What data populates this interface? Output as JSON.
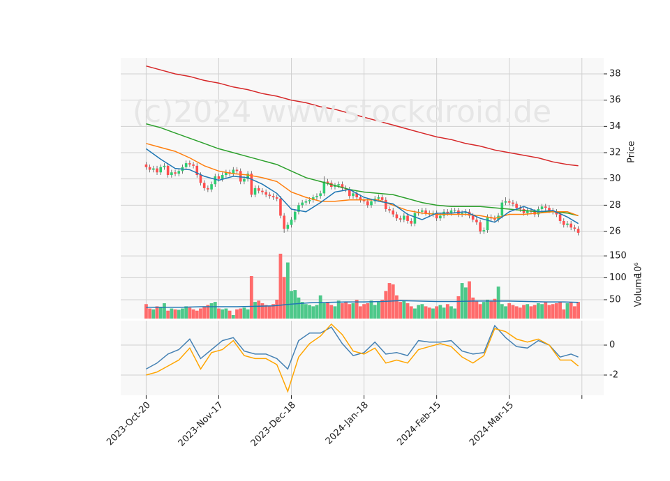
{
  "chart_data": [
    {
      "type": "candlestick",
      "y_label": "Price",
      "watermark": "(c)2024 www.stockdroid.de",
      "x": [
        0,
        1,
        2,
        3,
        4,
        5,
        6,
        7,
        8,
        9,
        10,
        11,
        12,
        13,
        14,
        15,
        16,
        17,
        18,
        19,
        20,
        21,
        22,
        23,
        24,
        25,
        26,
        27,
        28,
        29,
        30,
        31,
        32,
        33,
        34,
        35,
        36,
        37,
        38,
        39,
        40,
        41,
        42,
        43,
        44,
        45,
        46,
        47,
        48,
        49,
        50,
        51,
        52,
        53,
        54,
        55,
        56,
        57,
        58,
        59,
        60,
        61,
        62,
        63,
        64,
        65,
        66,
        67,
        68,
        69,
        70,
        71,
        72,
        73,
        74,
        75,
        76,
        77,
        78,
        79,
        80,
        81,
        82,
        83,
        84,
        85,
        86,
        87,
        88,
        89,
        90,
        91,
        92,
        93,
        94,
        95,
        96,
        97,
        98,
        99,
        100,
        101,
        102,
        103,
        104,
        105,
        106,
        107,
        108,
        109,
        110,
        111,
        112,
        113,
        114,
        115,
        116,
        117,
        118,
        119
      ],
      "open": [
        31.1,
        30.9,
        30.7,
        30.8,
        30.5,
        30.9,
        31.0,
        30.3,
        30.5,
        30.4,
        30.6,
        30.9,
        31.2,
        31.1,
        31.0,
        30.3,
        29.7,
        29.3,
        29.2,
        29.6,
        30.2,
        30.0,
        30.3,
        30.5,
        30.4,
        30.7,
        30.6,
        29.8,
        30.0,
        30.4,
        28.8,
        29.3,
        29.1,
        29.0,
        28.8,
        28.7,
        28.6,
        28.5,
        27.2,
        26.2,
        26.5,
        26.9,
        27.5,
        28.0,
        28.2,
        28.3,
        28.4,
        28.6,
        28.7,
        28.9,
        29.8,
        29.7,
        29.4,
        29.5,
        29.6,
        29.3,
        29.2,
        28.7,
        28.9,
        28.6,
        28.4,
        28.3,
        28.0,
        28.3,
        28.5,
        28.6,
        28.4,
        27.7,
        27.6,
        27.3,
        27.0,
        26.9,
        27.2,
        26.8,
        26.6,
        27.4,
        27.5,
        27.6,
        27.4,
        27.3,
        27.4,
        27.0,
        27.2,
        27.5,
        27.4,
        27.6,
        27.6,
        27.3,
        27.4,
        27.5,
        27.2,
        26.9,
        26.7,
        26.0,
        26.1,
        27.1,
        27.0,
        26.9,
        27.2,
        28.2,
        28.3,
        28.2,
        28.1,
        27.8,
        27.7,
        27.4,
        27.6,
        27.5,
        27.3,
        27.7,
        27.9,
        27.8,
        27.6,
        27.5,
        27.3,
        26.8,
        26.5,
        26.6,
        26.3,
        26.2
      ],
      "high": [
        31.3,
        31.1,
        31.0,
        31.0,
        31.1,
        31.2,
        31.2,
        30.7,
        30.7,
        30.8,
        31.1,
        31.4,
        31.4,
        31.3,
        31.2,
        30.5,
        29.9,
        29.5,
        29.8,
        30.4,
        30.4,
        30.5,
        30.7,
        30.7,
        30.9,
        30.9,
        30.8,
        30.2,
        30.6,
        30.6,
        29.5,
        29.5,
        29.3,
        29.2,
        29.0,
        28.9,
        28.8,
        28.7,
        27.4,
        26.7,
        27.1,
        27.7,
        28.2,
        28.4,
        28.5,
        28.6,
        28.8,
        28.9,
        29.1,
        30.2,
        30.0,
        29.9,
        29.7,
        29.8,
        29.8,
        29.5,
        29.4,
        29.1,
        29.1,
        28.8,
        28.6,
        28.5,
        28.5,
        28.7,
        28.8,
        28.8,
        28.6,
        27.9,
        27.8,
        27.5,
        27.2,
        27.4,
        27.4,
        27.0,
        27.6,
        27.7,
        27.8,
        27.8,
        27.6,
        27.6,
        27.6,
        27.4,
        27.7,
        27.7,
        27.8,
        27.8,
        27.8,
        27.6,
        27.7,
        27.7,
        27.4,
        27.1,
        26.9,
        26.3,
        27.3,
        27.3,
        27.2,
        27.4,
        28.4,
        28.6,
        28.5,
        28.4,
        28.3,
        28.0,
        27.9,
        27.8,
        27.8,
        27.7,
        27.9,
        28.1,
        28.1,
        28.0,
        27.8,
        27.7,
        27.5,
        27.0,
        26.8,
        26.8,
        26.5,
        26.4
      ],
      "low": [
        30.7,
        30.5,
        30.5,
        30.3,
        30.3,
        30.7,
        30.1,
        30.1,
        30.2,
        30.2,
        30.4,
        30.7,
        30.9,
        30.8,
        30.1,
        29.5,
        29.1,
        29.0,
        29.0,
        29.4,
        29.8,
        29.8,
        30.1,
        30.2,
        30.2,
        30.4,
        29.6,
        29.6,
        29.8,
        28.6,
        28.6,
        28.9,
        28.8,
        28.6,
        28.5,
        28.4,
        28.3,
        27.0,
        25.9,
        26.0,
        26.3,
        26.7,
        27.3,
        27.8,
        28.0,
        28.1,
        28.2,
        28.4,
        28.5,
        28.7,
        29.5,
        29.2,
        29.2,
        29.3,
        29.1,
        29.0,
        28.5,
        28.5,
        28.4,
        28.2,
        28.1,
        27.8,
        27.8,
        28.1,
        28.3,
        28.2,
        27.5,
        27.4,
        27.1,
        26.8,
        26.7,
        26.7,
        26.6,
        26.4,
        26.4,
        27.2,
        27.3,
        27.2,
        27.1,
        27.1,
        26.8,
        26.8,
        27.0,
        27.2,
        27.2,
        27.4,
        27.1,
        27.1,
        27.2,
        27.0,
        26.7,
        26.5,
        25.8,
        25.8,
        25.9,
        26.8,
        26.7,
        26.7,
        27.0,
        28.0,
        28.0,
        27.9,
        27.6,
        27.5,
        27.2,
        27.2,
        27.3,
        27.1,
        27.1,
        27.5,
        27.6,
        27.4,
        27.3,
        27.1,
        26.6,
        26.3,
        26.3,
        26.1,
        26.0,
        25.7
      ],
      "close": [
        30.9,
        30.7,
        30.8,
        30.5,
        30.9,
        31.0,
        30.3,
        30.5,
        30.4,
        30.6,
        30.9,
        31.2,
        31.1,
        31.0,
        30.3,
        29.7,
        29.3,
        29.2,
        29.6,
        30.2,
        30.0,
        30.3,
        30.5,
        30.4,
        30.7,
        30.6,
        29.8,
        30.0,
        30.4,
        28.8,
        29.3,
        29.1,
        29.0,
        28.8,
        28.7,
        28.6,
        28.5,
        27.2,
        26.2,
        26.5,
        26.9,
        27.5,
        28.0,
        28.2,
        28.3,
        28.4,
        28.6,
        28.7,
        28.9,
        29.8,
        29.7,
        29.4,
        29.5,
        29.6,
        29.3,
        29.2,
        28.7,
        28.9,
        28.6,
        28.4,
        28.3,
        28.0,
        28.3,
        28.5,
        28.6,
        28.4,
        27.7,
        27.6,
        27.3,
        27.0,
        26.9,
        27.2,
        26.8,
        26.6,
        27.4,
        27.5,
        27.6,
        27.4,
        27.3,
        27.4,
        27.0,
        27.2,
        27.5,
        27.4,
        27.6,
        27.6,
        27.3,
        27.4,
        27.5,
        27.2,
        26.9,
        26.7,
        26.0,
        26.1,
        27.1,
        27.0,
        26.9,
        27.2,
        28.2,
        28.3,
        28.2,
        28.1,
        27.8,
        27.7,
        27.4,
        27.6,
        27.5,
        27.3,
        27.7,
        27.9,
        27.8,
        27.6,
        27.5,
        27.3,
        26.8,
        26.5,
        26.6,
        26.3,
        26.2,
        25.9
      ],
      "up_color": "#2ecc71",
      "down_color": "#ff4d4d",
      "xlim": [
        -7,
        126
      ],
      "ylim": [
        24.94,
        39.22
      ],
      "yticks": [
        26,
        28,
        30,
        32,
        34,
        36,
        38
      ],
      "grid": true,
      "series": [
        {
          "color": "#d62728",
          "x": [
            0,
            4,
            8,
            12,
            16,
            20,
            24,
            28,
            32,
            36,
            40,
            44,
            48,
            52,
            56,
            60,
            64,
            68,
            72,
            76,
            80,
            84,
            88,
            92,
            96,
            100,
            104,
            108,
            112,
            116,
            119
          ],
          "values": [
            38.6,
            38.3,
            38.0,
            37.8,
            37.5,
            37.3,
            37.0,
            36.8,
            36.5,
            36.3,
            36.0,
            35.8,
            35.5,
            35.3,
            35.0,
            34.7,
            34.4,
            34.1,
            33.8,
            33.5,
            33.2,
            33.0,
            32.7,
            32.5,
            32.2,
            32.0,
            31.8,
            31.6,
            31.3,
            31.1,
            31.0
          ]
        },
        {
          "color": "#2ca02c",
          "x": [
            0,
            4,
            8,
            12,
            16,
            20,
            24,
            28,
            32,
            36,
            40,
            44,
            48,
            52,
            56,
            60,
            64,
            68,
            72,
            76,
            80,
            84,
            88,
            92,
            96,
            100,
            104,
            108,
            112,
            116,
            119
          ],
          "values": [
            34.2,
            33.9,
            33.5,
            33.1,
            32.7,
            32.3,
            32.0,
            31.7,
            31.4,
            31.1,
            30.6,
            30.1,
            29.8,
            29.5,
            29.2,
            29.0,
            28.9,
            28.8,
            28.5,
            28.2,
            28.0,
            27.9,
            27.9,
            27.9,
            27.8,
            27.7,
            27.6,
            27.5,
            27.5,
            27.4,
            27.2
          ]
        },
        {
          "color": "#ff7f0e",
          "x": [
            0,
            4,
            8,
            12,
            16,
            20,
            24,
            28,
            32,
            36,
            40,
            44,
            48,
            52,
            56,
            60,
            64,
            68,
            72,
            76,
            80,
            84,
            88,
            92,
            96,
            100,
            104,
            108,
            112,
            116,
            119
          ],
          "values": [
            32.7,
            32.4,
            32.1,
            31.6,
            31.0,
            30.6,
            30.4,
            30.3,
            30.1,
            29.8,
            29.0,
            28.6,
            28.3,
            28.3,
            28.4,
            28.4,
            28.4,
            28.0,
            27.6,
            27.4,
            27.3,
            27.3,
            27.3,
            27.2,
            27.0,
            27.3,
            27.3,
            27.4,
            27.5,
            27.5,
            27.2
          ]
        },
        {
          "color": "#1f77b4",
          "x": [
            0,
            4,
            8,
            12,
            16,
            20,
            24,
            28,
            32,
            36,
            40,
            44,
            48,
            52,
            56,
            60,
            64,
            68,
            72,
            76,
            80,
            84,
            88,
            92,
            96,
            100,
            104,
            108,
            112,
            116,
            119
          ],
          "values": [
            32.3,
            31.5,
            30.8,
            30.7,
            30.2,
            29.9,
            30.2,
            30.1,
            29.6,
            28.9,
            27.7,
            27.5,
            28.2,
            29.0,
            29.2,
            28.6,
            28.3,
            28.1,
            27.3,
            26.9,
            27.4,
            27.4,
            27.5,
            27.0,
            26.7,
            27.5,
            27.9,
            27.5,
            27.6,
            27.1,
            26.6
          ]
        }
      ]
    },
    {
      "type": "bar",
      "y_label": "Volume",
      "scale_label": "10⁶",
      "up_color": "#4dc88a",
      "down_color": "#ff6b6b",
      "values": [
        40,
        30,
        28,
        35,
        32,
        42,
        25,
        30,
        28,
        27,
        30,
        35,
        32,
        28,
        25,
        30,
        35,
        38,
        42,
        45,
        30,
        28,
        30,
        25,
        15,
        28,
        30,
        32,
        28,
        104,
        45,
        48,
        42,
        38,
        35,
        40,
        50,
        155,
        102,
        135,
        70,
        72,
        55,
        45,
        40,
        38,
        35,
        38,
        60,
        42,
        45,
        38,
        35,
        48,
        42,
        45,
        40,
        42,
        50,
        35,
        40,
        42,
        48,
        38,
        45,
        50,
        70,
        88,
        85,
        60,
        45,
        48,
        42,
        35,
        30,
        38,
        40,
        35,
        32,
        30,
        35,
        38,
        32,
        40,
        35,
        30,
        58,
        88,
        78,
        92,
        55,
        48,
        40,
        45,
        50,
        48,
        52,
        80,
        40,
        35,
        42,
        38,
        35,
        32,
        38,
        40,
        35,
        38,
        42,
        40,
        45,
        38,
        40,
        42,
        45,
        28,
        42,
        45,
        35,
        45
      ],
      "xlim": [
        -7,
        126
      ],
      "ylim": [
        7,
        174
      ],
      "yticks": [
        50,
        100,
        150
      ],
      "grid": true,
      "series": [
        {
          "color": "#1f77b4",
          "x": [
            0,
            5,
            10,
            15,
            20,
            25,
            30,
            35,
            40,
            45,
            50,
            55,
            60,
            65,
            70,
            75,
            80,
            85,
            90,
            95,
            100,
            105,
            110,
            115,
            119
          ],
          "values": [
            33,
            33,
            33,
            34,
            34,
            34,
            35,
            36,
            40,
            43,
            44,
            45,
            45,
            46,
            48,
            47,
            46,
            46,
            47,
            47,
            47,
            46,
            45,
            45,
            44
          ]
        }
      ]
    },
    {
      "type": "line",
      "xlim": [
        -7,
        126
      ],
      "ylim": [
        -3.35,
        1.63
      ],
      "yticks": [
        -2,
        0
      ],
      "grid": true,
      "xticks": [
        {
          "value": 0,
          "label": "2023-Oct-20"
        },
        {
          "value": 20,
          "label": "2023-Nov-17"
        },
        {
          "value": 40,
          "label": "2023-Dec-18"
        },
        {
          "value": 60,
          "label": "2024-Jan-18"
        },
        {
          "value": 80,
          "label": "2024-Feb-15"
        },
        {
          "value": 100,
          "label": "2024-Mar-15"
        },
        {
          "value": 120,
          "label": null
        }
      ],
      "series": [
        {
          "color": "#4682b4",
          "x": [
            0,
            3,
            6,
            9,
            12,
            15,
            18,
            21,
            24,
            27,
            30,
            33,
            36,
            39,
            42,
            45,
            48,
            51,
            54,
            57,
            60,
            63,
            66,
            69,
            72,
            75,
            78,
            81,
            84,
            87,
            90,
            93,
            96,
            99,
            102,
            105,
            108,
            111,
            114,
            117,
            119
          ],
          "values": [
            -1.6,
            -1.2,
            -0.6,
            -0.3,
            0.4,
            -0.9,
            -0.3,
            0.3,
            0.5,
            -0.4,
            -0.6,
            -0.6,
            -0.9,
            -1.6,
            0.3,
            0.8,
            0.8,
            1.2,
            0.1,
            -0.7,
            -0.5,
            0.2,
            -0.6,
            -0.5,
            -0.7,
            0.3,
            0.2,
            0.2,
            0.3,
            -0.4,
            -0.6,
            -0.5,
            1.3,
            0.5,
            -0.1,
            -0.2,
            0.3,
            0.0,
            -0.8,
            -0.6,
            -0.8
          ]
        },
        {
          "color": "#ffa500",
          "x": [
            0,
            3,
            6,
            9,
            12,
            15,
            18,
            21,
            24,
            27,
            30,
            33,
            36,
            39,
            42,
            45,
            48,
            51,
            54,
            57,
            60,
            63,
            66,
            69,
            72,
            75,
            78,
            81,
            84,
            87,
            90,
            93,
            96,
            99,
            102,
            105,
            108,
            111,
            114,
            117,
            119
          ],
          "values": [
            -2.0,
            -1.8,
            -1.4,
            -1.0,
            -0.2,
            -1.6,
            -0.5,
            -0.3,
            0.3,
            -0.7,
            -0.9,
            -0.9,
            -1.3,
            -3.1,
            -0.8,
            0.1,
            0.6,
            1.4,
            0.7,
            -0.4,
            -0.6,
            -0.2,
            -1.2,
            -1.0,
            -1.2,
            -0.3,
            -0.1,
            0.1,
            -0.1,
            -0.8,
            -1.2,
            -0.7,
            1.1,
            0.9,
            0.4,
            0.2,
            0.4,
            0.0,
            -1.0,
            -1.0,
            -1.4
          ]
        }
      ]
    }
  ]
}
